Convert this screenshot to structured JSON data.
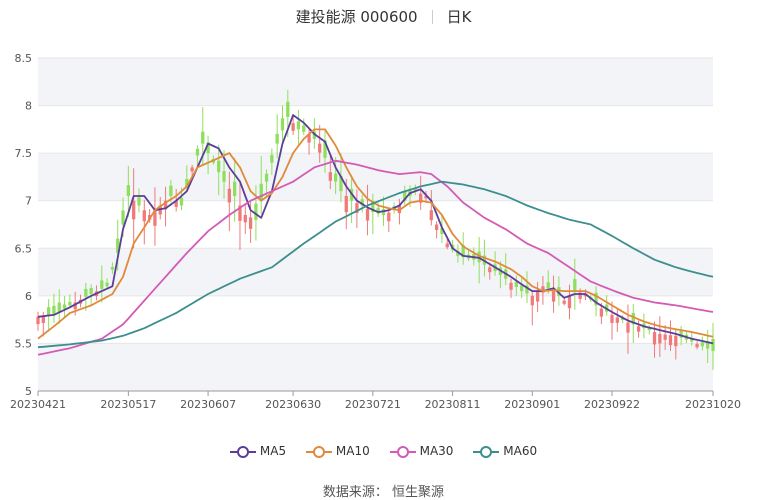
{
  "header": {
    "title": "建投能源 000600",
    "period": "日K"
  },
  "legend": [
    {
      "name": "MA5",
      "color": "#5b3d9a"
    },
    {
      "name": "MA10",
      "color": "#e08a3a"
    },
    {
      "name": "MA30",
      "color": "#d45ab6"
    },
    {
      "name": "MA60",
      "color": "#3d8e8e"
    }
  ],
  "source": "数据来源： 恒生聚源",
  "colors": {
    "up": "#f07a7a",
    "down": "#8ee05c",
    "band": "#f3f4f8",
    "grid": "#e6e6e6"
  },
  "chart_data": {
    "type": "candlestick",
    "ylim": [
      5,
      8.5
    ],
    "y_ticks": [
      "5",
      "5.5",
      "6",
      "6.5",
      "7",
      "7.5",
      "8",
      "8.5"
    ],
    "x_ticks": [
      "20230421",
      "20230517",
      "20230607",
      "20230630",
      "20230721",
      "20230811",
      "20230901",
      "20230922",
      "20231020"
    ],
    "x_tick_index": [
      0,
      17,
      32,
      48,
      63,
      78,
      93,
      108,
      127
    ],
    "n_days": 128,
    "anchors": [
      [
        0,
        5.78
      ],
      [
        3,
        5.8
      ],
      [
        6,
        5.9
      ],
      [
        10,
        6.02
      ],
      [
        13,
        6.1
      ],
      [
        15,
        6.45
      ],
      [
        17,
        7.05
      ],
      [
        19,
        6.95
      ],
      [
        21,
        6.85
      ],
      [
        23,
        6.95
      ],
      [
        25,
        7.05
      ],
      [
        27,
        6.95
      ],
      [
        29,
        7.35
      ],
      [
        31,
        7.6
      ],
      [
        33,
        7.4
      ],
      [
        35,
        7.2
      ],
      [
        37,
        7.05
      ],
      [
        39,
        6.85
      ],
      [
        41,
        6.8
      ],
      [
        43,
        7.2
      ],
      [
        45,
        7.6
      ],
      [
        47,
        7.88
      ],
      [
        49,
        7.75
      ],
      [
        51,
        7.7
      ],
      [
        53,
        7.6
      ],
      [
        55,
        7.3
      ],
      [
        57,
        7.1
      ],
      [
        59,
        7.0
      ],
      [
        61,
        6.95
      ],
      [
        63,
        6.88
      ],
      [
        65,
        6.85
      ],
      [
        67,
        6.9
      ],
      [
        69,
        7.0
      ],
      [
        71,
        7.1
      ],
      [
        73,
        7.05
      ],
      [
        75,
        6.75
      ],
      [
        77,
        6.55
      ],
      [
        79,
        6.42
      ],
      [
        82,
        6.38
      ],
      [
        85,
        6.3
      ],
      [
        88,
        6.18
      ],
      [
        91,
        6.05
      ],
      [
        93,
        6.0
      ],
      [
        95,
        6.1
      ],
      [
        97,
        6.05
      ],
      [
        99,
        5.95
      ],
      [
        101,
        6.05
      ],
      [
        103,
        6.02
      ],
      [
        105,
        5.9
      ],
      [
        108,
        5.8
      ],
      [
        111,
        5.72
      ],
      [
        114,
        5.66
      ],
      [
        117,
        5.6
      ],
      [
        120,
        5.58
      ],
      [
        123,
        5.52
      ],
      [
        127,
        5.42
      ]
    ],
    "series": [
      {
        "name": "MA5",
        "values": [
          [
            0,
            5.78
          ],
          [
            3,
            5.8
          ],
          [
            6,
            5.88
          ],
          [
            10,
            6.0
          ],
          [
            14,
            6.1
          ],
          [
            16,
            6.7
          ],
          [
            18,
            7.05
          ],
          [
            20,
            7.05
          ],
          [
            22,
            6.9
          ],
          [
            24,
            6.92
          ],
          [
            26,
            7.0
          ],
          [
            28,
            7.1
          ],
          [
            30,
            7.35
          ],
          [
            32,
            7.6
          ],
          [
            34,
            7.55
          ],
          [
            36,
            7.35
          ],
          [
            38,
            7.2
          ],
          [
            40,
            6.9
          ],
          [
            42,
            6.82
          ],
          [
            44,
            7.1
          ],
          [
            46,
            7.6
          ],
          [
            48,
            7.9
          ],
          [
            50,
            7.82
          ],
          [
            52,
            7.7
          ],
          [
            54,
            7.62
          ],
          [
            56,
            7.35
          ],
          [
            58,
            7.15
          ],
          [
            60,
            7.0
          ],
          [
            62,
            6.93
          ],
          [
            64,
            6.88
          ],
          [
            66,
            6.9
          ],
          [
            68,
            6.95
          ],
          [
            70,
            7.08
          ],
          [
            72,
            7.12
          ],
          [
            74,
            7.0
          ],
          [
            76,
            6.72
          ],
          [
            78,
            6.5
          ],
          [
            80,
            6.42
          ],
          [
            83,
            6.4
          ],
          [
            86,
            6.3
          ],
          [
            89,
            6.2
          ],
          [
            91,
            6.12
          ],
          [
            93,
            6.05
          ],
          [
            95,
            6.05
          ],
          [
            97,
            6.08
          ],
          [
            99,
            5.98
          ],
          [
            101,
            6.02
          ],
          [
            103,
            6.02
          ],
          [
            105,
            5.93
          ],
          [
            108,
            5.83
          ],
          [
            111,
            5.74
          ],
          [
            114,
            5.68
          ],
          [
            117,
            5.64
          ],
          [
            120,
            5.6
          ],
          [
            123,
            5.55
          ],
          [
            127,
            5.5
          ]
        ]
      },
      {
        "name": "MA10",
        "values": [
          [
            0,
            5.55
          ],
          [
            3,
            5.68
          ],
          [
            6,
            5.82
          ],
          [
            10,
            5.9
          ],
          [
            14,
            6.02
          ],
          [
            16,
            6.2
          ],
          [
            18,
            6.55
          ],
          [
            20,
            6.72
          ],
          [
            22,
            6.9
          ],
          [
            24,
            6.98
          ],
          [
            26,
            7.05
          ],
          [
            28,
            7.15
          ],
          [
            30,
            7.35
          ],
          [
            32,
            7.4
          ],
          [
            34,
            7.45
          ],
          [
            36,
            7.5
          ],
          [
            38,
            7.35
          ],
          [
            40,
            7.1
          ],
          [
            42,
            7.0
          ],
          [
            44,
            7.08
          ],
          [
            46,
            7.25
          ],
          [
            48,
            7.5
          ],
          [
            50,
            7.65
          ],
          [
            52,
            7.75
          ],
          [
            54,
            7.75
          ],
          [
            56,
            7.58
          ],
          [
            58,
            7.35
          ],
          [
            60,
            7.15
          ],
          [
            62,
            7.02
          ],
          [
            64,
            6.95
          ],
          [
            66,
            6.92
          ],
          [
            68,
            6.9
          ],
          [
            70,
            6.98
          ],
          [
            72,
            7.0
          ],
          [
            74,
            6.98
          ],
          [
            76,
            6.85
          ],
          [
            78,
            6.65
          ],
          [
            80,
            6.52
          ],
          [
            83,
            6.42
          ],
          [
            86,
            6.36
          ],
          [
            89,
            6.28
          ],
          [
            91,
            6.2
          ],
          [
            93,
            6.1
          ],
          [
            95,
            6.05
          ],
          [
            97,
            6.06
          ],
          [
            99,
            6.05
          ],
          [
            101,
            6.05
          ],
          [
            103,
            6.05
          ],
          [
            105,
            6.0
          ],
          [
            108,
            5.9
          ],
          [
            111,
            5.8
          ],
          [
            114,
            5.73
          ],
          [
            117,
            5.68
          ],
          [
            120,
            5.65
          ],
          [
            123,
            5.62
          ],
          [
            127,
            5.57
          ]
        ]
      },
      {
        "name": "MA30",
        "values": [
          [
            0,
            5.38
          ],
          [
            6,
            5.45
          ],
          [
            12,
            5.55
          ],
          [
            16,
            5.7
          ],
          [
            20,
            5.95
          ],
          [
            24,
            6.2
          ],
          [
            28,
            6.45
          ],
          [
            32,
            6.68
          ],
          [
            36,
            6.85
          ],
          [
            40,
            7.0
          ],
          [
            44,
            7.1
          ],
          [
            48,
            7.2
          ],
          [
            52,
            7.35
          ],
          [
            56,
            7.42
          ],
          [
            60,
            7.38
          ],
          [
            64,
            7.32
          ],
          [
            68,
            7.28
          ],
          [
            72,
            7.3
          ],
          [
            74,
            7.28
          ],
          [
            77,
            7.15
          ],
          [
            80,
            6.98
          ],
          [
            84,
            6.82
          ],
          [
            88,
            6.7
          ],
          [
            92,
            6.55
          ],
          [
            96,
            6.45
          ],
          [
            100,
            6.3
          ],
          [
            104,
            6.15
          ],
          [
            108,
            6.06
          ],
          [
            112,
            5.98
          ],
          [
            116,
            5.93
          ],
          [
            120,
            5.9
          ],
          [
            124,
            5.86
          ],
          [
            127,
            5.83
          ]
        ]
      },
      {
        "name": "MA60",
        "values": [
          [
            0,
            5.46
          ],
          [
            6,
            5.49
          ],
          [
            12,
            5.53
          ],
          [
            16,
            5.58
          ],
          [
            20,
            5.66
          ],
          [
            26,
            5.82
          ],
          [
            32,
            6.02
          ],
          [
            38,
            6.18
          ],
          [
            44,
            6.3
          ],
          [
            50,
            6.55
          ],
          [
            56,
            6.78
          ],
          [
            62,
            6.95
          ],
          [
            68,
            7.08
          ],
          [
            72,
            7.15
          ],
          [
            76,
            7.2
          ],
          [
            80,
            7.17
          ],
          [
            84,
            7.12
          ],
          [
            88,
            7.05
          ],
          [
            92,
            6.95
          ],
          [
            96,
            6.87
          ],
          [
            100,
            6.8
          ],
          [
            104,
            6.75
          ],
          [
            108,
            6.63
          ],
          [
            112,
            6.5
          ],
          [
            116,
            6.38
          ],
          [
            120,
            6.3
          ],
          [
            124,
            6.24
          ],
          [
            127,
            6.2
          ]
        ]
      }
    ]
  }
}
